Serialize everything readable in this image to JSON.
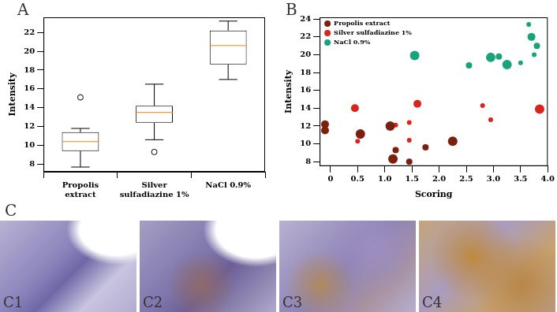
{
  "chart_data": [
    {
      "panel": "A",
      "type": "box",
      "categories": [
        [
          "Propolis",
          "extract"
        ],
        [
          "Silver",
          "sulfadiazine 1%"
        ],
        [
          "NaCl 0.9%"
        ]
      ],
      "y_label": "Intensity",
      "color": "#000000",
      "ylim": [
        7.2,
        23.6
      ],
      "yticks": [
        8,
        10,
        12,
        14,
        16,
        18,
        20,
        22
      ],
      "grid": false,
      "boxes": [
        {
          "whisker_low": 7.7,
          "q1": 9.4,
          "median": 10.4,
          "q3": 11.4,
          "whisker_high": 11.8,
          "outliers": [
            15.1
          ]
        },
        {
          "whisker_low": 10.6,
          "q1": 12.4,
          "median": 13.5,
          "q3": 14.2,
          "whisker_high": 16.5,
          "outliers": [
            9.3
          ]
        },
        {
          "whisker_low": 17.0,
          "q1": 18.6,
          "median": 20.6,
          "q3": 22.2,
          "whisker_high": 23.2,
          "outliers": []
        }
      ]
    },
    {
      "panel": "B",
      "type": "bubble",
      "x_label": "Scoring",
      "y_label": "Intensity",
      "xlim": [
        -0.2,
        4.0
      ],
      "xticks": [
        0,
        0.5,
        {
          "value": 1,
          "label": "1.0"
        },
        1.5,
        {
          "value": 2,
          "label": "2.0"
        },
        2.5,
        {
          "value": 3,
          "label": "3.0"
        },
        3.5,
        {
          "value": 4,
          "label": "4.0"
        }
      ],
      "ylim": [
        7.5,
        24.2
      ],
      "yticks": [
        8,
        10,
        12,
        14,
        16,
        18,
        20,
        22,
        24
      ],
      "grid": false,
      "legend": "upper left",
      "series": [
        {
          "name": "Propolis extract",
          "color": "#7b1f0f",
          "x": [
            -0.1,
            -0.1,
            0.55,
            1.1,
            1.2,
            1.15,
            1.45,
            1.75,
            2.25
          ],
          "values": [
            12.2,
            11.5,
            11.1,
            12.0,
            9.3,
            8.3,
            8.0,
            9.6,
            10.3
          ],
          "sizes": [
            5,
            5,
            6,
            6,
            4,
            6,
            4,
            4,
            6
          ]
        },
        {
          "name": "Silver sulfadiazine 1%",
          "color": "#d9261c",
          "x": [
            0.45,
            0.5,
            0.55,
            1.2,
            1.45,
            1.45,
            1.6,
            2.8,
            2.95,
            3.85
          ],
          "values": [
            14.0,
            10.3,
            11.0,
            12.1,
            12.4,
            10.4,
            14.5,
            14.3,
            12.7,
            13.9
          ],
          "sizes": [
            5,
            3,
            5,
            3,
            3,
            3,
            5,
            3,
            3,
            6
          ]
        },
        {
          "name": "NaCl 0.9%",
          "color": "#1aa37a",
          "x": [
            1.55,
            2.55,
            2.95,
            3.1,
            3.25,
            3.5,
            3.65,
            3.7,
            3.8,
            3.75
          ],
          "values": [
            19.9,
            18.8,
            19.7,
            19.8,
            18.9,
            19.1,
            23.4,
            22.0,
            21.0,
            20.0
          ],
          "sizes": [
            6,
            4,
            6,
            4,
            6,
            3,
            3,
            5,
            4,
            3
          ]
        }
      ]
    }
  ],
  "image_panel": {
    "panel": "C",
    "images": [
      "C1",
      "C2",
      "C3",
      "C4"
    ]
  }
}
